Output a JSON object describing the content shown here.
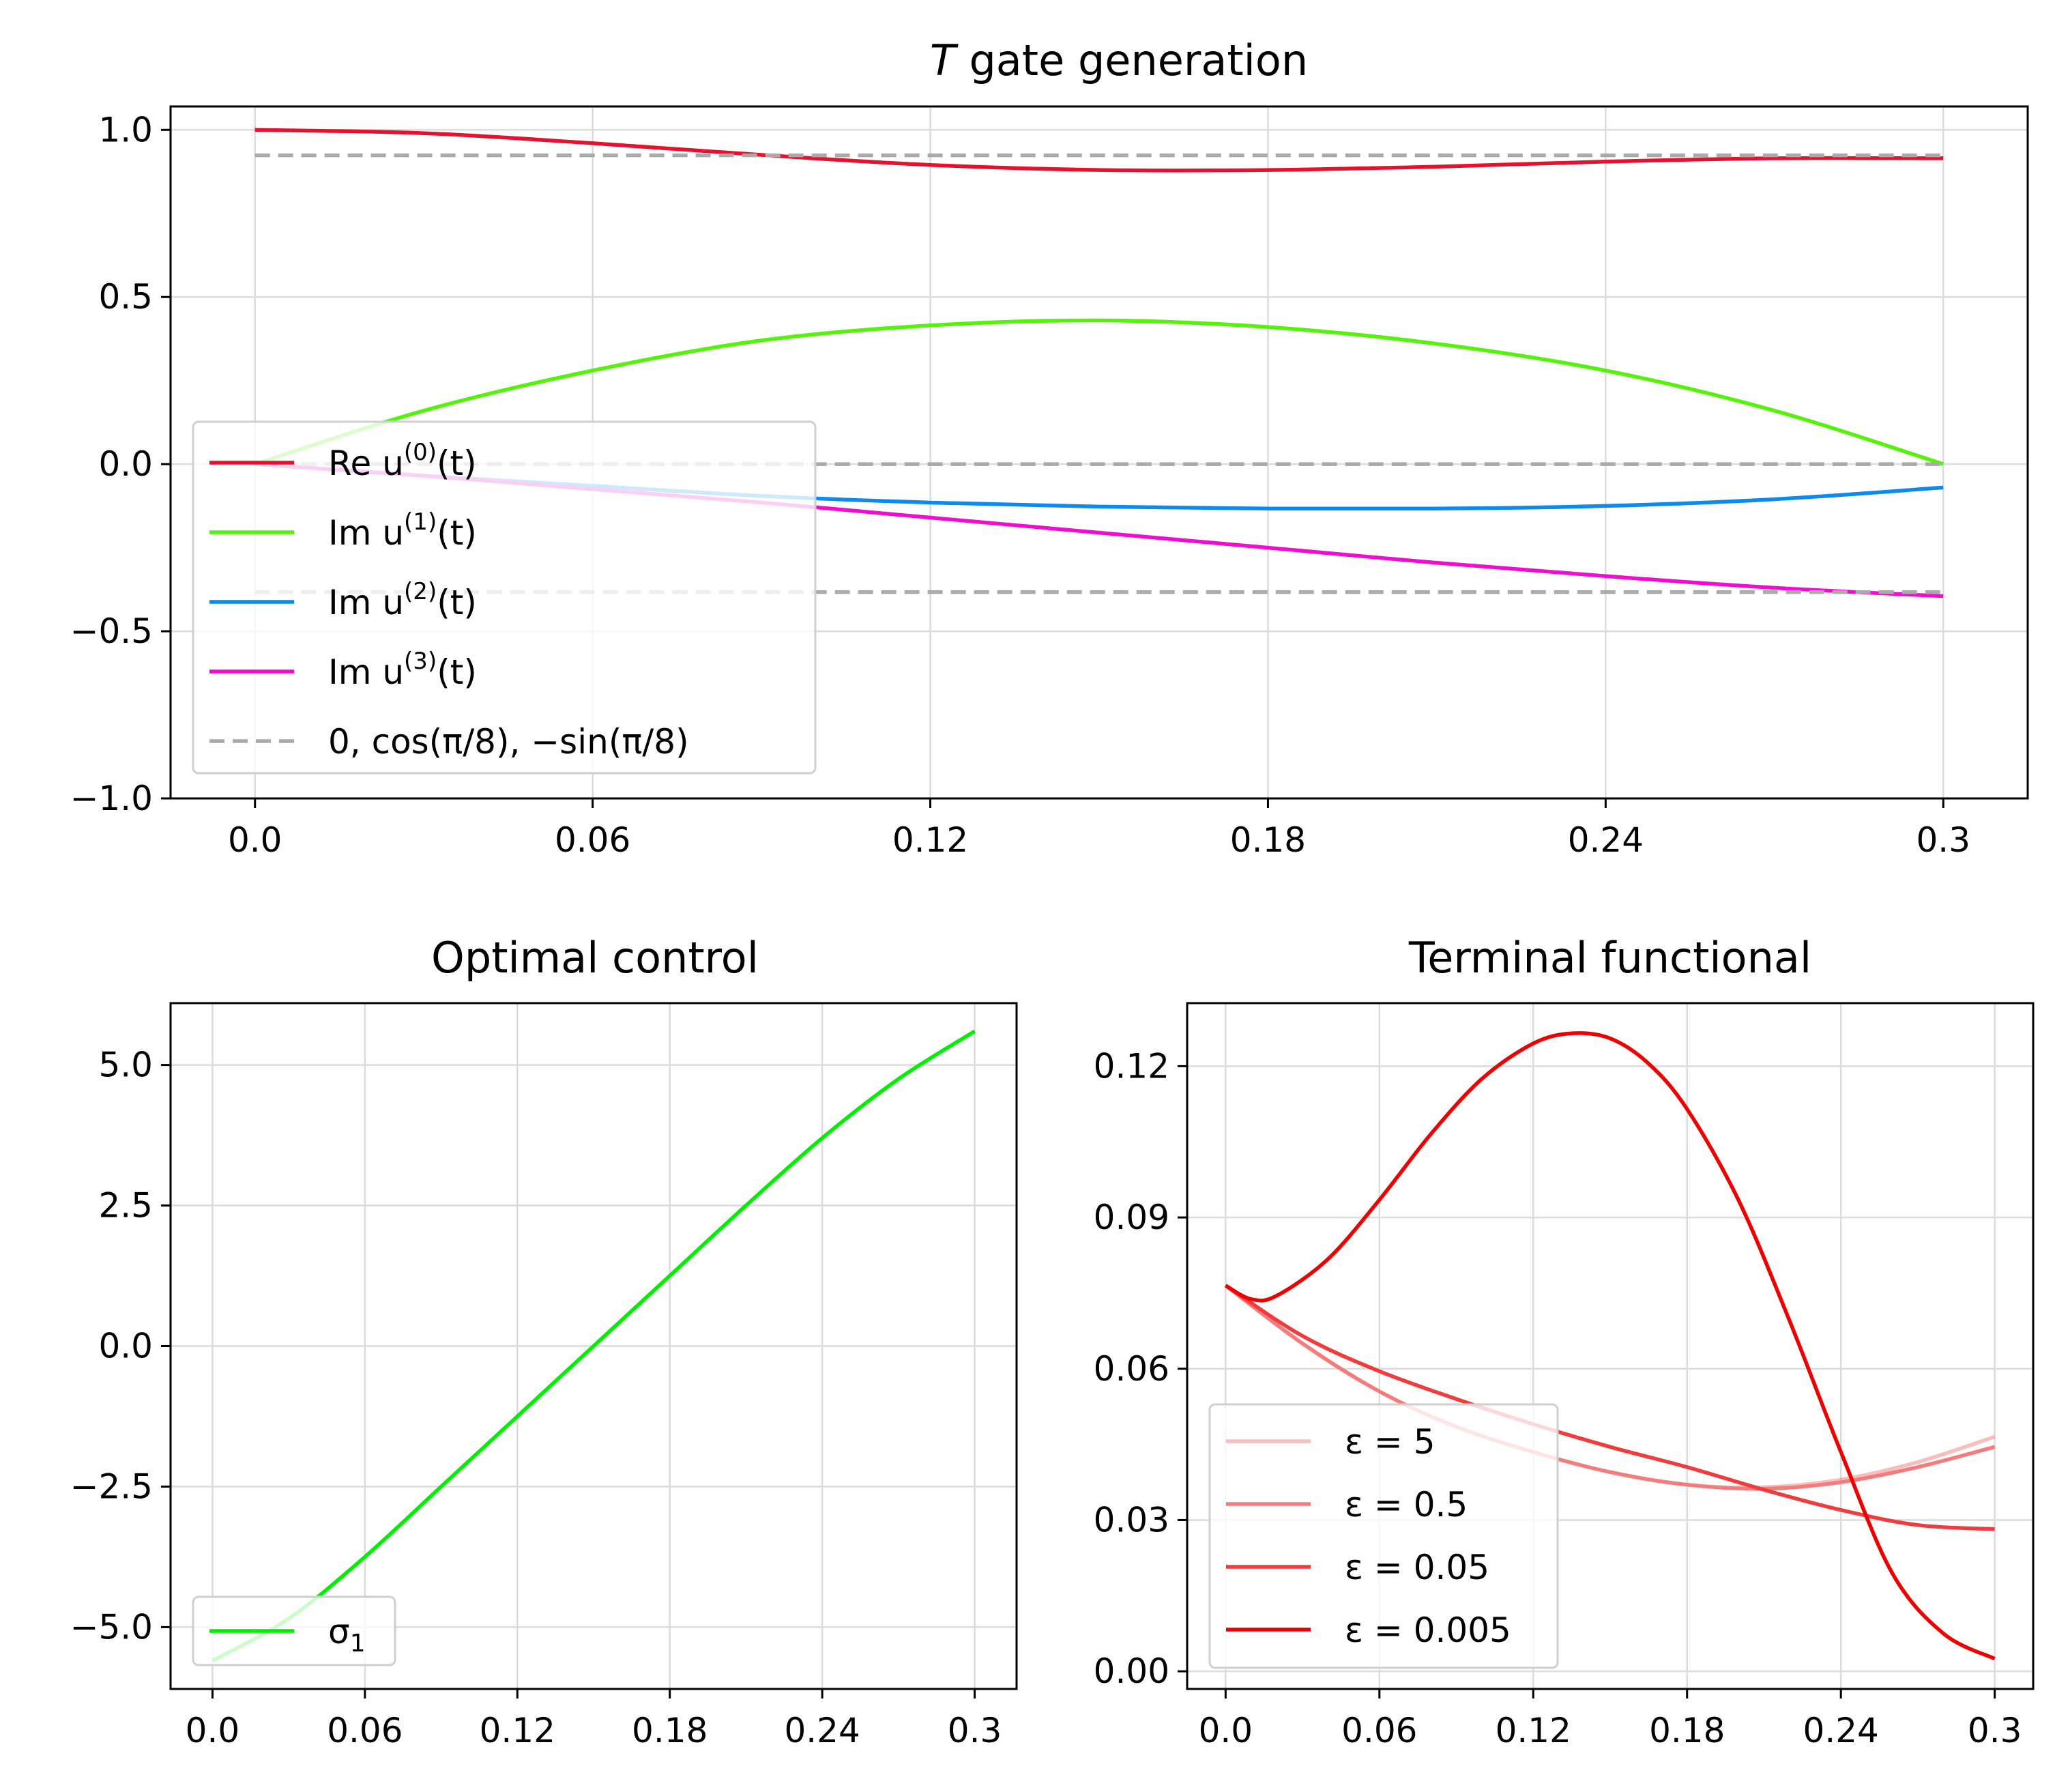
{
  "chart_data": [
    {
      "type": "line",
      "id": "top",
      "title": "T gate generation",
      "xlim": [
        -0.015,
        0.315
      ],
      "ylim": [
        -1.0,
        1.07
      ],
      "xticks": [
        0.0,
        0.06,
        0.12,
        0.18,
        0.24,
        0.3
      ],
      "xtick_labels": [
        "0.0",
        "0.06",
        "0.12",
        "0.18",
        "0.24",
        "0.3"
      ],
      "yticks": [
        1.0,
        0.5,
        0.0,
        -0.5,
        -1.0
      ],
      "ytick_labels": [
        "1.0",
        "0.5",
        "0.0",
        "−0.5",
        "−1.0"
      ],
      "grid": true,
      "legend_position": "lower-left",
      "series": [
        {
          "name": "Re u(0)(t)",
          "color": "#e8112d",
          "style": "solid",
          "x": [
            0.0,
            0.03,
            0.06,
            0.09,
            0.12,
            0.15,
            0.18,
            0.21,
            0.24,
            0.27,
            0.3
          ],
          "y": [
            1.0,
            0.99,
            0.96,
            0.925,
            0.895,
            0.88,
            0.88,
            0.89,
            0.905,
            0.915,
            0.915
          ]
        },
        {
          "name": "Im u(1)(t)",
          "color": "#55f20c",
          "style": "solid",
          "x": [
            0.0,
            0.03,
            0.06,
            0.09,
            0.12,
            0.15,
            0.18,
            0.21,
            0.24,
            0.27,
            0.3
          ],
          "y": [
            0.0,
            0.16,
            0.28,
            0.37,
            0.415,
            0.43,
            0.41,
            0.36,
            0.28,
            0.16,
            0.0
          ]
        },
        {
          "name": "Im u(2)(t)",
          "color": "#0b8af0",
          "style": "solid",
          "x": [
            0.0,
            0.03,
            0.06,
            0.09,
            0.12,
            0.15,
            0.18,
            0.21,
            0.24,
            0.27,
            0.3
          ],
          "y": [
            0.0,
            -0.035,
            -0.065,
            -0.095,
            -0.115,
            -0.127,
            -0.133,
            -0.133,
            -0.125,
            -0.105,
            -0.07
          ]
        },
        {
          "name": "Im u(3)(t)",
          "color": "#f20bd0",
          "style": "solid",
          "x": [
            0.0,
            0.03,
            0.06,
            0.09,
            0.12,
            0.15,
            0.18,
            0.21,
            0.24,
            0.27,
            0.3
          ],
          "y": [
            0.0,
            -0.035,
            -0.075,
            -0.115,
            -0.16,
            -0.205,
            -0.25,
            -0.295,
            -0.335,
            -0.37,
            -0.395
          ]
        },
        {
          "name": "0, cos(π/8), −sin(π/8)",
          "color": "#aaaaaa",
          "style": "dashed",
          "segments": [
            {
              "x": [
                0.0,
                0.3
              ],
              "y": [
                0.0,
                0.0
              ]
            },
            {
              "x": [
                0.0,
                0.3
              ],
              "y": [
                0.9239,
                0.9239
              ]
            },
            {
              "x": [
                0.0,
                0.3
              ],
              "y": [
                -0.3827,
                -0.3827
              ]
            }
          ]
        }
      ],
      "legend": [
        {
          "label": "Re u",
          "sup": "(0)",
          "tail": "(t)",
          "color": "#e8112d",
          "style": "solid"
        },
        {
          "label": "Im u",
          "sup": "(1)",
          "tail": "(t)",
          "color": "#55f20c",
          "style": "solid"
        },
        {
          "label": "Im u",
          "sup": "(2)",
          "tail": "(t)",
          "color": "#0b8af0",
          "style": "solid"
        },
        {
          "label": "Im u",
          "sup": "(3)",
          "tail": "(t)",
          "color": "#f20bd0",
          "style": "solid"
        },
        {
          "label": "0, cos(π/8),  −sin(π/8)",
          "sup": "",
          "tail": "",
          "color": "#aaaaaa",
          "style": "dashed"
        }
      ]
    },
    {
      "type": "line",
      "id": "bottom-left",
      "title": "Optimal control",
      "xlim": [
        -0.0165,
        0.3165
      ],
      "ylim": [
        -6.1,
        6.1
      ],
      "xticks": [
        0.0,
        0.06,
        0.12,
        0.18,
        0.24,
        0.3
      ],
      "xtick_labels": [
        "0.0",
        "0.06",
        "0.12",
        "0.18",
        "0.24",
        "0.3"
      ],
      "yticks": [
        5.0,
        2.5,
        0.0,
        -2.5,
        -5.0
      ],
      "ytick_labels": [
        "5.0",
        "2.5",
        "0.0",
        "−2.5",
        "−5.0"
      ],
      "grid": true,
      "legend_position": "lower-left",
      "series": [
        {
          "name": "σ₁",
          "color": "#00ee00",
          "style": "solid",
          "x": [
            0.0,
            0.03,
            0.06,
            0.09,
            0.12,
            0.15,
            0.18,
            0.21,
            0.24,
            0.27,
            0.3
          ],
          "y": [
            -5.6,
            -4.85,
            -3.75,
            -2.5,
            -1.25,
            0.0,
            1.25,
            2.5,
            3.7,
            4.75,
            5.6
          ]
        }
      ],
      "legend": [
        {
          "label": "σ",
          "sub": "1",
          "color": "#00ee00",
          "style": "solid"
        }
      ]
    },
    {
      "type": "line",
      "id": "bottom-right",
      "title": "Terminal functional",
      "xlim": [
        -0.015,
        0.315
      ],
      "ylim": [
        -0.0035,
        0.1325
      ],
      "xticks": [
        0.0,
        0.06,
        0.12,
        0.18,
        0.24,
        0.3
      ],
      "xtick_labels": [
        "0.0",
        "0.06",
        "0.12",
        "0.18",
        "0.24",
        "0.3"
      ],
      "yticks": [
        0.12,
        0.09,
        0.06,
        0.03,
        0.0
      ],
      "ytick_labels": [
        "0.12",
        "0.09",
        "0.06",
        "0.03",
        "0.00"
      ],
      "grid": true,
      "legend_position": "lower-left",
      "series": [
        {
          "name": "ε = 5",
          "color": "#f47c7c",
          "opacity": 0.5,
          "style": "solid",
          "x": [
            0.0,
            0.03,
            0.06,
            0.09,
            0.12,
            0.15,
            0.18,
            0.21,
            0.24,
            0.27,
            0.3
          ],
          "y": [
            0.0765,
            0.065,
            0.0555,
            0.0485,
            0.0435,
            0.0395,
            0.037,
            0.0365,
            0.038,
            0.0415,
            0.0465
          ]
        },
        {
          "name": "ε = 0.5",
          "color": "#f47c7c",
          "opacity": 1.0,
          "style": "solid",
          "x": [
            0.0,
            0.03,
            0.06,
            0.09,
            0.12,
            0.15,
            0.18,
            0.21,
            0.24,
            0.27,
            0.3
          ],
          "y": [
            0.0765,
            0.065,
            0.0555,
            0.0485,
            0.0435,
            0.0395,
            0.037,
            0.0362,
            0.0375,
            0.0405,
            0.0445
          ]
        },
        {
          "name": "ε = 0.05",
          "color": "#f03c3c",
          "opacity": 1.0,
          "style": "solid",
          "x": [
            0.0,
            0.03,
            0.06,
            0.09,
            0.12,
            0.15,
            0.18,
            0.21,
            0.24,
            0.27,
            0.3
          ],
          "y": [
            0.0765,
            0.0665,
            0.0595,
            0.054,
            0.049,
            0.0445,
            0.0405,
            0.036,
            0.032,
            0.029,
            0.0282
          ]
        },
        {
          "name": "ε = 0.005",
          "color": "#ee0000",
          "opacity": 1.0,
          "style": "solid",
          "x": [
            0.0,
            0.01,
            0.02,
            0.04,
            0.06,
            0.08,
            0.1,
            0.12,
            0.135,
            0.15,
            0.165,
            0.18,
            0.2,
            0.22,
            0.24,
            0.26,
            0.28,
            0.3
          ],
          "y": [
            0.0765,
            0.0738,
            0.0745,
            0.0818,
            0.0935,
            0.1065,
            0.1175,
            0.1245,
            0.1265,
            0.1255,
            0.1205,
            0.1115,
            0.0935,
            0.0695,
            0.0435,
            0.0195,
            0.0075,
            0.0025
          ]
        }
      ],
      "legend": [
        {
          "label": "ε = 5",
          "color": "#f47c7c",
          "opacity": 0.5,
          "style": "solid"
        },
        {
          "label": "ε = 0.5",
          "color": "#f47c7c",
          "opacity": 1.0,
          "style": "solid"
        },
        {
          "label": "ε = 0.05",
          "color": "#f03c3c",
          "opacity": 1.0,
          "style": "solid"
        },
        {
          "label": "ε = 0.005",
          "color": "#ee0000",
          "opacity": 1.0,
          "style": "solid"
        }
      ]
    }
  ]
}
